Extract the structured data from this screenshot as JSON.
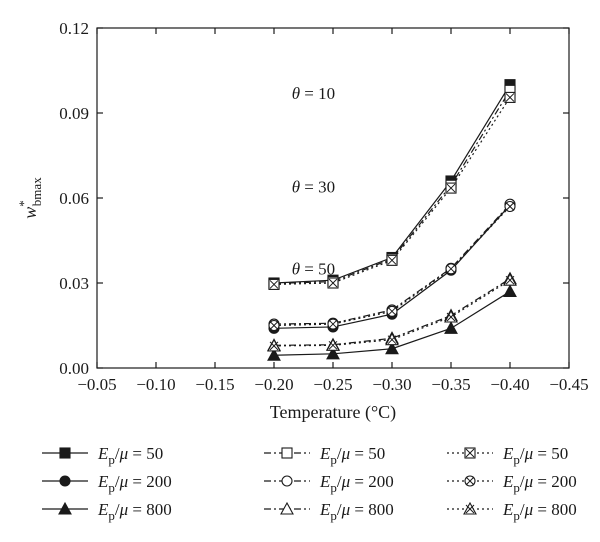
{
  "chart_data": {
    "type": "line",
    "xlabel": "Temperature (°C)",
    "ylabel": "w*bmax",
    "xlim": [
      -0.05,
      -0.45
    ],
    "ylim": [
      0.0,
      0.12
    ],
    "x_ticks": [
      "−0.05",
      "−0.10",
      "−0.15",
      "−0.20",
      "−0.25",
      "−0.30",
      "−0.35",
      "−0.40",
      "−0.45"
    ],
    "y_ticks": [
      "0.00",
      "0.03",
      "0.06",
      "0.09",
      "0.12"
    ],
    "grid": false,
    "legend_placement": "bottom",
    "x": [
      -0.2,
      -0.25,
      -0.3,
      -0.35,
      -0.4
    ],
    "annotations": [
      {
        "text": "θ = 10",
        "x": -0.215,
        "y": 0.095
      },
      {
        "text": "θ = 30",
        "x": -0.215,
        "y": 0.062
      },
      {
        "text": "θ = 50",
        "x": -0.215,
        "y": 0.033
      }
    ],
    "series": [
      {
        "name": "Ep/μ = 50",
        "ratio": "50",
        "style": "solid",
        "marker": "square-filled",
        "values": [
          0.03,
          0.031,
          0.039,
          0.066,
          0.1
        ]
      },
      {
        "name": "Ep/μ = 200",
        "ratio": "200",
        "style": "solid",
        "marker": "circle-filled",
        "values": [
          0.014,
          0.0145,
          0.019,
          0.0345,
          0.0575
        ]
      },
      {
        "name": "Ep/μ = 800",
        "ratio": "800",
        "style": "solid",
        "marker": "triangle-filled",
        "values": [
          0.0045,
          0.005,
          0.0068,
          0.014,
          0.027
        ]
      },
      {
        "name": "Ep/μ = 50",
        "ratio": "50",
        "style": "dashdot",
        "marker": "square-open",
        "values": [
          0.0298,
          0.0305,
          0.0385,
          0.0645,
          0.098
        ]
      },
      {
        "name": "Ep/μ = 200",
        "ratio": "200",
        "style": "dashdot",
        "marker": "circle-open",
        "values": [
          0.0155,
          0.0158,
          0.0205,
          0.0352,
          0.0578
        ]
      },
      {
        "name": "Ep/μ = 800",
        "ratio": "800",
        "style": "dashdot",
        "marker": "triangle-open",
        "values": [
          0.008,
          0.0082,
          0.0105,
          0.0185,
          0.0315
        ]
      },
      {
        "name": "Ep/μ = 50",
        "ratio": "50",
        "style": "dotted",
        "marker": "square-x",
        "values": [
          0.0295,
          0.03,
          0.038,
          0.0635,
          0.0955
        ]
      },
      {
        "name": "Ep/μ = 200",
        "ratio": "200",
        "style": "dotted",
        "marker": "circle-x",
        "values": [
          0.015,
          0.0155,
          0.02,
          0.035,
          0.057
        ]
      },
      {
        "name": "Ep/μ = 800",
        "ratio": "800",
        "style": "dotted",
        "marker": "triangle-x",
        "values": [
          0.0078,
          0.008,
          0.01,
          0.018,
          0.031
        ]
      }
    ]
  }
}
